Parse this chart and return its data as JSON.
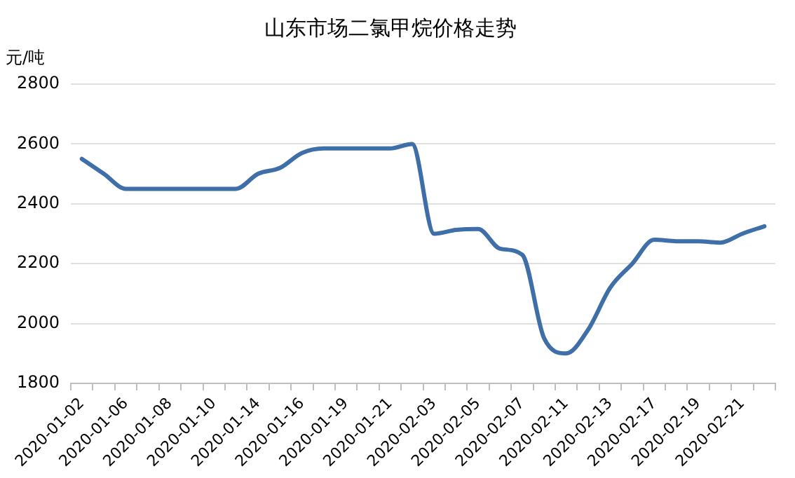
{
  "chart_data": {
    "type": "line",
    "title": "山东市场二氯甲烷价格走势",
    "ylabel": "元/吨",
    "categories": [
      "2020-01-02",
      null,
      "2020-01-06",
      null,
      "2020-01-08",
      null,
      "2020-01-10",
      null,
      "2020-01-14",
      null,
      "2020-01-16",
      null,
      "2020-01-19",
      null,
      "2020-01-21",
      null,
      "2020-02-03",
      null,
      "2020-02-05",
      null,
      "2020-02-07",
      null,
      "2020-02-11",
      null,
      "2020-02-13",
      null,
      "2020-02-17",
      null,
      "2020-02-19",
      null,
      "2020-02-21",
      null
    ],
    "series": [
      {
        "color": "#3e6fa8",
        "values": [
          2550,
          2500,
          2450,
          2450,
          2450,
          2450,
          2450,
          2450,
          2500,
          2520,
          2570,
          2585,
          2585,
          2585,
          2585,
          2600,
          2300,
          2313,
          2316,
          2250,
          2230,
          1950,
          1900,
          1980,
          2120,
          2200,
          2280,
          2275,
          2275,
          2270,
          2300,
          2325
        ]
      }
    ],
    "ylim": [
      1800,
      2800
    ],
    "yticks": [
      1800,
      2000,
      2200,
      2400,
      2600,
      2800
    ],
    "grid": "y",
    "legend": false,
    "marker": "none",
    "line_style": "solid"
  }
}
